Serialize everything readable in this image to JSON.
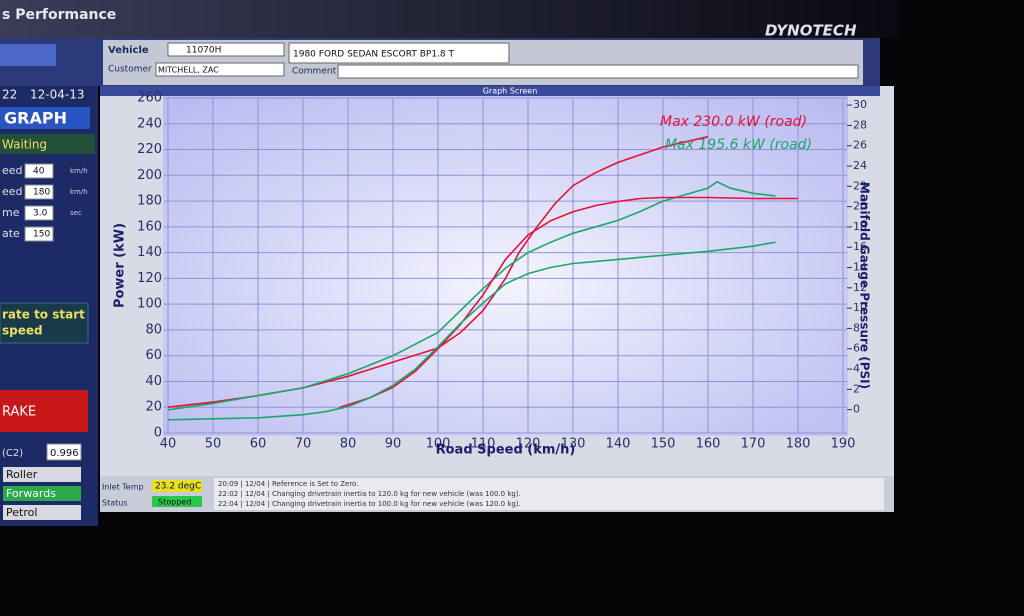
{
  "header": {
    "title": "s Performance",
    "brand": "DYNOTECH"
  },
  "vehicle": {
    "vehicle_label": "Vehicle",
    "vehicle_id": "11070H",
    "description": "1980 FORD SEDAN ESCORT BP1.8 T",
    "customer_label": "Customer",
    "customer": "MITCHELL, ZAC",
    "comment_label": "Comment"
  },
  "sidebar": {
    "time": "22",
    "date": "12-04-13",
    "mode": "GRAPH",
    "state": "Waiting",
    "fields": [
      {
        "label": "eed",
        "value": "40",
        "unit": "km/h"
      },
      {
        "label": "eed",
        "value": "180",
        "unit": "km/h"
      },
      {
        "label": "me",
        "value": "3.0",
        "unit": "sec"
      },
      {
        "label": "ate",
        "value": "150"
      }
    ],
    "prompt": [
      "rate to start",
      "speed"
    ],
    "brake": "RAKE",
    "coef_label": "(C2)",
    "coef": "0.996",
    "roller": "Roller",
    "direction": "Forwards",
    "fuel": "Petrol"
  },
  "status": {
    "inlet_label": "Inlet Temp",
    "inlet": "23.2 degC",
    "status_label": "Status",
    "status": "Stopped",
    "log": [
      "20:09 | 12/04 | Reference is Set to Zero.",
      "22:02 | 12/04 | Changing drivetrain inertia to 120.0 kg for new vehicle (was 100.0 kg).",
      "22:04 | 12/04 | Changing drivetrain inertia to 100.0 kg for new vehicle (was 120.0 kg)."
    ]
  },
  "chart_data": {
    "type": "line",
    "window_title": "Graph Screen",
    "xlabel": "Road Speed (km/h)",
    "ylabel": "Power (kW)",
    "y2label": "Manifold Gauge Pressure (PSI)",
    "annotations": [
      {
        "text": "Max 230.0 kW (road)",
        "color": "#e8103a"
      },
      {
        "text": "Max 195.6 kW (road)",
        "color": "#1aa86a"
      }
    ],
    "xlim": [
      40,
      190
    ],
    "xticks": [
      40,
      50,
      60,
      70,
      80,
      90,
      100,
      110,
      120,
      130,
      140,
      150,
      160,
      170,
      180,
      190
    ],
    "ylim": [
      0,
      260
    ],
    "yticks": [
      0,
      20,
      40,
      60,
      80,
      100,
      120,
      140,
      160,
      180,
      200,
      220,
      240,
      260
    ],
    "y2lim": [
      -2.3,
      30.7
    ],
    "y2ticks": [
      0,
      2,
      4,
      6,
      8,
      10,
      12,
      14,
      16,
      18,
      20,
      22,
      24,
      26,
      28,
      30
    ],
    "grid": true,
    "series": [
      {
        "color": "#e8103a",
        "x": [
          40,
          50,
          60,
          70,
          80,
          90,
          100,
          105,
          110,
          115,
          118,
          122,
          126,
          130,
          135,
          140,
          145,
          150,
          160
        ],
        "values": [
          20,
          24,
          29,
          35,
          44,
          55,
          66,
          78,
          95,
          120,
          140,
          160,
          178,
          192,
          202,
          210,
          216,
          222,
          230
        ]
      },
      {
        "color": "#1aa86a",
        "x": [
          40,
          50,
          60,
          70,
          80,
          90,
          100,
          105,
          110,
          115,
          120,
          125,
          130,
          140,
          145,
          150,
          155,
          160,
          162,
          165,
          170,
          175
        ],
        "values": [
          18,
          23,
          29,
          35,
          46,
          60,
          78,
          95,
          112,
          128,
          140,
          148,
          155,
          165,
          172,
          180,
          185,
          190,
          195,
          190,
          186,
          184
        ]
      },
      {
        "color": "#e8103a",
        "axis": "y2",
        "x": [
          78,
          85,
          90,
          95,
          100,
          105,
          110,
          115,
          120,
          125,
          130,
          135,
          140,
          145,
          150,
          160,
          170,
          180
        ],
        "values": [
          0.2,
          1.2,
          2.2,
          3.8,
          6.0,
          8.4,
          11.3,
          14.8,
          17.2,
          18.6,
          19.5,
          20.1,
          20.5,
          20.8,
          20.9,
          20.9,
          20.8,
          20.8
        ]
      },
      {
        "color": "#1aa86a",
        "axis": "y2",
        "x": [
          40,
          50,
          60,
          70,
          75,
          80,
          85,
          90,
          95,
          100,
          105,
          110,
          115,
          120,
          125,
          130,
          140,
          150,
          160,
          170,
          175
        ],
        "values": [
          -1.0,
          -0.9,
          -0.8,
          -0.5,
          -0.2,
          0.3,
          1.2,
          2.4,
          4.0,
          6.2,
          8.5,
          10.5,
          12.4,
          13.4,
          14.0,
          14.4,
          14.8,
          15.2,
          15.6,
          16.1,
          16.5
        ]
      }
    ]
  }
}
